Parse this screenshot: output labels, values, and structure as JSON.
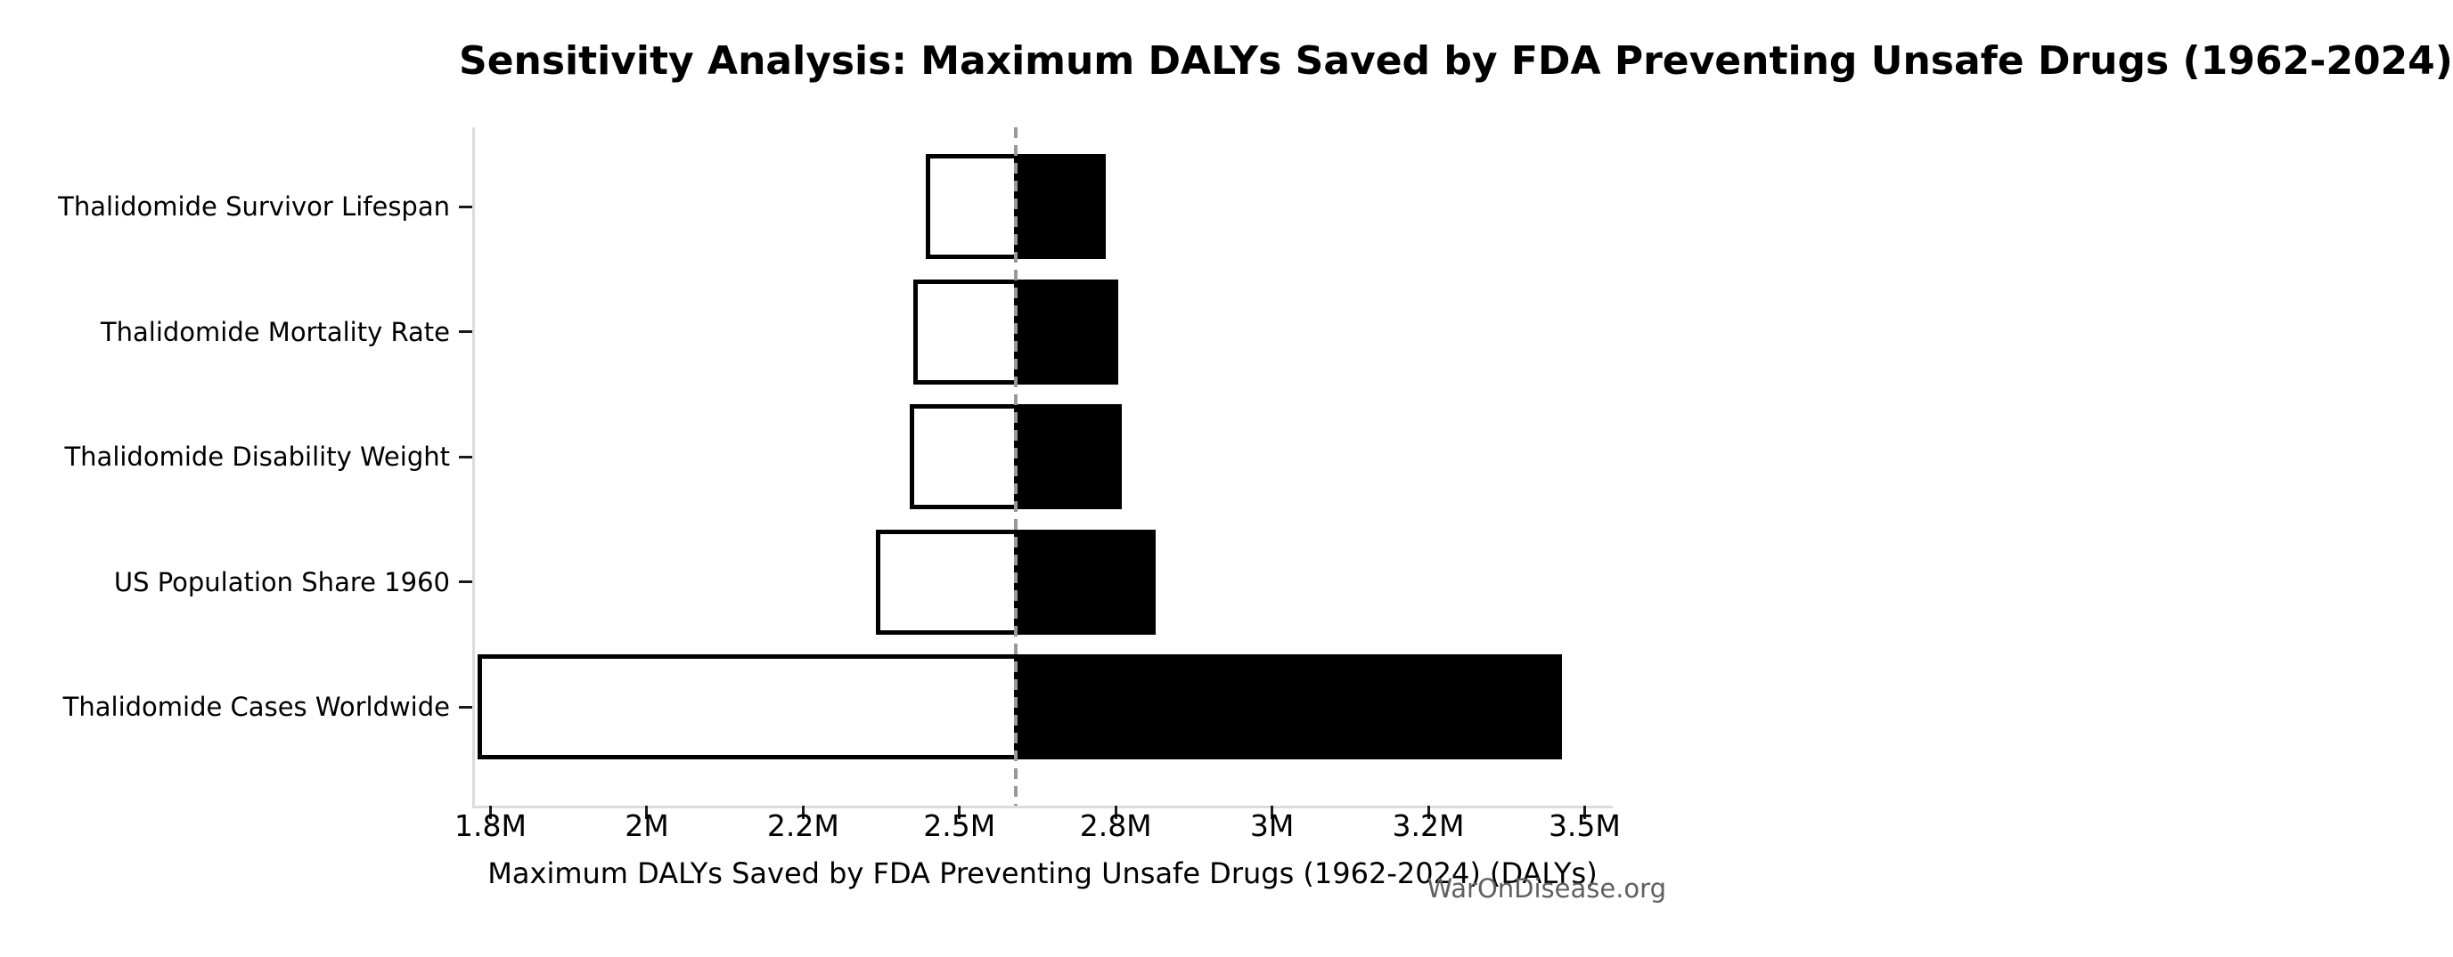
{
  "figure": {
    "title": "Sensitivity Analysis: Maximum DALYs Saved by FDA Preventing Unsafe Drugs (1962-2024)",
    "watermark": "WarOnDisease.org"
  },
  "chart_data": {
    "type": "bar",
    "subtype": "tornado-sensitivity",
    "orientation": "horizontal",
    "title": "Sensitivity Analysis: Maximum DALYs Saved by FDA Preventing Unsafe Drugs (1962-2024)",
    "xlabel": "Maximum DALYs Saved by FDA Preventing Unsafe Drugs (1962-2024) (DALYs)",
    "ylabel": "",
    "base_value": 2590000,
    "baseline_style": "dashed-gray-vertical",
    "xlim": [
      1725000,
      3545000
    ],
    "grid": false,
    "legend_position": "none",
    "xticks": [
      {
        "value": 1750000,
        "label": "1.8M"
      },
      {
        "value": 2000000,
        "label": "2M"
      },
      {
        "value": 2250000,
        "label": "2.2M"
      },
      {
        "value": 2500000,
        "label": "2.5M"
      },
      {
        "value": 2750000,
        "label": "2.8M"
      },
      {
        "value": 3000000,
        "label": "3M"
      },
      {
        "value": 3250000,
        "label": "3.2M"
      },
      {
        "value": 3500000,
        "label": "3.5M"
      }
    ],
    "rows": [
      {
        "label": "Thalidomide Survivor Lifespan",
        "low": 2450000,
        "high": 2730000
      },
      {
        "label": "Thalidomide Mortality Rate",
        "low": 2430000,
        "high": 2750000
      },
      {
        "label": "Thalidomide Disability Weight",
        "low": 2425000,
        "high": 2755000
      },
      {
        "label": "US Population Share 1960",
        "low": 2370000,
        "high": 2810000
      },
      {
        "label": "Thalidomide Cases Worldwide",
        "low": 1733000,
        "high": 3460000
      }
    ],
    "colors": {
      "low_fill": "#ffffff",
      "high_fill": "#000000",
      "bar_edge": "#000000",
      "baseline": "#999999",
      "spine": "#dcdcdc",
      "tick": "#1a1a1a",
      "text": "#000000",
      "watermark": "#606060",
      "background": "#ffffff"
    }
  }
}
